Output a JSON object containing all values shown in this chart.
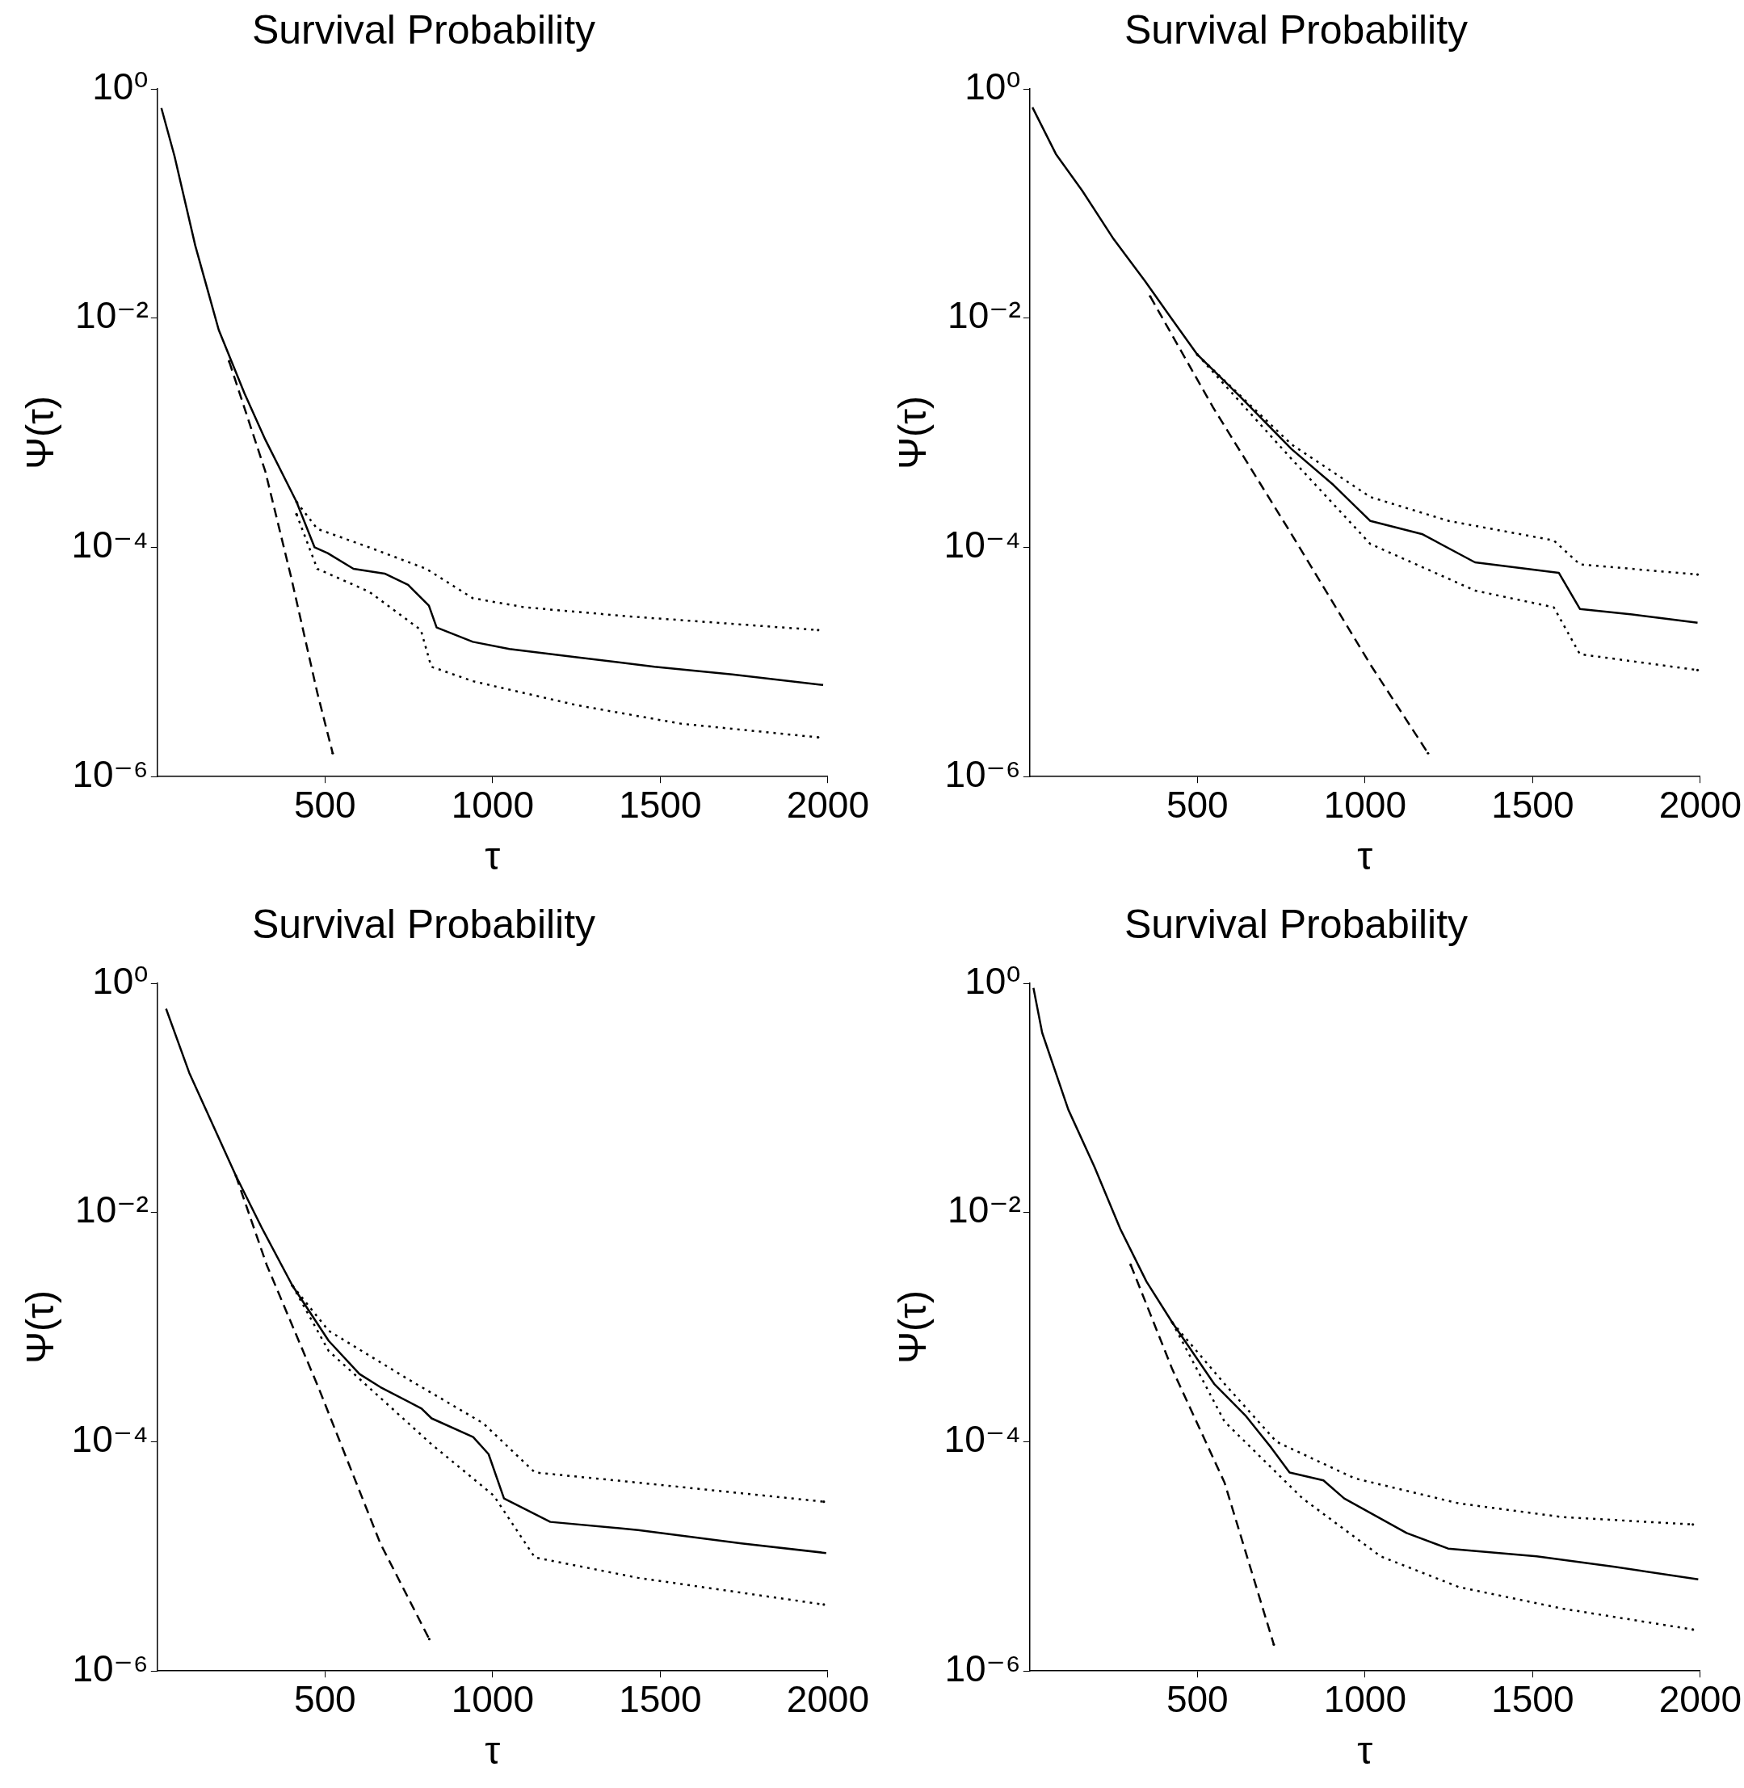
{
  "chart_data": [
    {
      "type": "line",
      "title": "Survival Probability",
      "xlabel": "τ",
      "ylabel": "Ψ(τ)",
      "log": "y",
      "grid": false,
      "legend": false,
      "xlim": [
        0,
        2000
      ],
      "xticks": [
        500,
        1000,
        1500,
        2000
      ],
      "ylim": [
        1e-06,
        1
      ],
      "yticks": [
        {
          "value": 1,
          "label": "10⁰"
        },
        {
          "value": 0.01,
          "label": "10⁻²"
        },
        {
          "value": 0.0001,
          "label": "10⁻⁴"
        },
        {
          "value": 1e-06,
          "label": "10⁻⁶"
        }
      ],
      "series": [
        {
          "color": "#000000",
          "line_style": "solid",
          "x": [
            12,
            51,
            113,
            183,
            260,
            322,
            415,
            469,
            508,
            585,
            678,
            748,
            810,
            833,
            941,
            1050,
            1251,
            1483,
            1715,
            1986
          ],
          "values": [
            0.68,
            0.26,
            0.043,
            0.0079,
            0.0022,
            0.00087,
            0.00025,
            0.0001,
            8.9e-05,
            6.5e-05,
            5.9e-05,
            4.7e-05,
            3.1e-05,
            2e-05,
            1.5e-05,
            1.3e-05,
            1.1e-05,
            9.1e-06,
            7.8e-06,
            6.3e-06
          ]
        },
        {
          "color": "#000000",
          "line_style": "dotted",
          "x": [
            415,
            477,
            632,
            802,
            941,
            1096,
            1406,
            1971
          ],
          "values": [
            0.00025,
            0.000145,
            0.0001,
            6.5e-05,
            3.6e-05,
            3e-05,
            2.5e-05,
            1.9e-05
          ]
        },
        {
          "color": "#000000",
          "line_style": "dotted",
          "x": [
            415,
            477,
            632,
            786,
            817,
            941,
            1251,
            1560,
            1971
          ],
          "values": [
            0.000195,
            6.5e-05,
            4.1e-05,
            1.9e-05,
            9.1e-06,
            6.8e-06,
            4.2e-06,
            2.9e-06,
            2.2e-06
          ]
        },
        {
          "color": "#000000",
          "line_style": "dashed",
          "x": [
            214,
            322,
            399,
            477,
            523
          ],
          "values": [
            0.0042,
            0.00046,
            5.5e-05,
            5.4e-06,
            1.6e-06
          ]
        }
      ]
    },
    {
      "type": "line",
      "title": "Survival Probability",
      "xlabel": "τ",
      "ylabel": "Ψ(τ)",
      "log": "y",
      "grid": false,
      "legend": false,
      "xlim": [
        0,
        2000
      ],
      "xticks": [
        500,
        1000,
        1500,
        2000
      ],
      "ylim": [
        1e-06,
        1
      ],
      "yticks": [
        {
          "value": 1,
          "label": "10⁰"
        },
        {
          "value": 0.01,
          "label": "10⁻²"
        },
        {
          "value": 0.0001,
          "label": "10⁻⁴"
        },
        {
          "value": 1e-06,
          "label": "10⁻⁶"
        }
      ],
      "series": [
        {
          "color": "#000000",
          "line_style": "solid",
          "x": [
            8,
            78,
            156,
            250,
            344,
            422,
            500,
            625,
            781,
            906,
            1016,
            1172,
            1328,
            1578,
            1641,
            1797,
            1992
          ],
          "values": [
            0.69,
            0.27,
            0.13,
            0.049,
            0.021,
            0.01,
            0.0048,
            0.0021,
            0.00072,
            0.00035,
            0.00017,
            0.00013,
            7.4e-05,
            6e-05,
            2.9e-05,
            2.6e-05,
            2.2e-05
          ]
        },
        {
          "color": "#000000",
          "line_style": "dotted",
          "x": [
            500,
            781,
            1016,
            1250,
            1563,
            1641,
            1992
          ],
          "values": [
            0.0048,
            0.00079,
            0.000275,
            0.00017,
            0.000115,
            7.1e-05,
            5.8e-05
          ]
        },
        {
          "color": "#000000",
          "line_style": "dotted",
          "x": [
            500,
            781,
            1016,
            1328,
            1563,
            1641,
            1992
          ],
          "values": [
            0.0048,
            0.00059,
            0.000107,
            4.2e-05,
            3e-05,
            1.17e-05,
            8.5e-06
          ]
        },
        {
          "color": "#000000",
          "line_style": "dashed",
          "x": [
            359,
            547,
            781,
            1016,
            1188
          ],
          "values": [
            0.0155,
            0.00166,
            0.00013,
            9.5e-06,
            1.6e-06
          ]
        }
      ]
    },
    {
      "type": "line",
      "title": "Survival Probability",
      "xlabel": "τ",
      "ylabel": "Ψ(τ)",
      "log": "y",
      "grid": false,
      "legend": false,
      "xlim": [
        0,
        2000
      ],
      "xticks": [
        500,
        1000,
        1500,
        2000
      ],
      "ylim": [
        1e-06,
        1
      ],
      "yticks": [
        {
          "value": 1,
          "label": "10⁰"
        },
        {
          "value": 0.01,
          "label": "10⁻²"
        },
        {
          "value": 0.0001,
          "label": "10⁻⁴"
        },
        {
          "value": 1e-06,
          "label": "10⁻⁶"
        }
      ],
      "series": [
        {
          "color": "#000000",
          "line_style": "solid",
          "x": [
            26,
            95,
            157,
            234,
            311,
            403,
            511,
            603,
            665,
            788,
            818,
            942,
            988,
            1034,
            1172,
            1434,
            1742,
            1995
          ],
          "values": [
            0.6,
            0.166,
            0.066,
            0.021,
            0.0074,
            0.0023,
            0.00076,
            0.00039,
            0.0003,
            0.000195,
            0.00016,
            0.00011,
            7.8e-05,
            3.2e-05,
            2e-05,
            1.7e-05,
            1.3e-05,
            1.07e-05
          ]
        },
        {
          "color": "#000000",
          "line_style": "dotted",
          "x": [
            403,
            511,
            742,
            972,
            1126,
            1434,
            1988
          ],
          "values": [
            0.0023,
            0.00093,
            0.00036,
            0.000145,
            5.4e-05,
            4.4e-05,
            3e-05
          ]
        },
        {
          "color": "#000000",
          "line_style": "dotted",
          "x": [
            403,
            511,
            818,
            1003,
            1126,
            1434,
            1988
          ],
          "values": [
            0.0023,
            0.00062,
            9.5e-05,
            3.4e-05,
            9.8e-06,
            6.5e-06,
            3.8e-06
          ]
        },
        {
          "color": "#000000",
          "line_style": "dashed",
          "x": [
            234,
            326,
            480,
            665,
            811
          ],
          "values": [
            0.021,
            0.0035,
            0.0003,
            1.3e-05,
            1.9e-06
          ]
        }
      ]
    },
    {
      "type": "line",
      "title": "Survival Probability",
      "xlabel": "τ",
      "ylabel": "Ψ(τ)",
      "log": "y",
      "grid": false,
      "legend": false,
      "xlim": [
        0,
        2000
      ],
      "xticks": [
        500,
        1000,
        1500,
        2000
      ],
      "ylim": [
        1e-06,
        1
      ],
      "yticks": [
        {
          "value": 1,
          "label": "10⁰"
        },
        {
          "value": 0.01,
          "label": "10⁻²"
        },
        {
          "value": 0.0001,
          "label": "10⁻⁴"
        },
        {
          "value": 1e-06,
          "label": "10⁻⁶"
        }
      ],
      "series": [
        {
          "color": "#000000",
          "line_style": "solid",
          "x": [
            11,
            37,
            115,
            193,
            270,
            348,
            425,
            550,
            643,
            720,
            775,
            876,
            938,
            1124,
            1248,
            1512,
            1745,
            1994
          ],
          "values": [
            0.91,
            0.37,
            0.079,
            0.025,
            0.0072,
            0.0025,
            0.0011,
            0.00032,
            0.00017,
            8.9e-05,
            5.4e-05,
            4.6e-05,
            3.2e-05,
            1.6e-05,
            1.17e-05,
            1e-05,
            8.1e-06,
            6.3e-06
          ]
        },
        {
          "color": "#000000",
          "line_style": "dotted",
          "x": [
            425,
            581,
            736,
            969,
            1280,
            1590,
            1978
          ],
          "values": [
            0.0011,
            0.00032,
            0.0001,
            4.8e-05,
            2.9e-05,
            2.2e-05,
            1.9e-05
          ]
        },
        {
          "color": "#000000",
          "line_style": "dotted",
          "x": [
            425,
            581,
            814,
            1047,
            1280,
            1590,
            1978
          ],
          "values": [
            0.0011,
            0.00015,
            3.2e-05,
            1e-05,
            5.4e-06,
            3.5e-06,
            2.3e-06
          ]
        },
        {
          "color": "#000000",
          "line_style": "dashed",
          "x": [
            301,
            425,
            581,
            728
          ],
          "values": [
            0.0035,
            0.00043,
            4.4e-05,
            1.7e-06
          ]
        }
      ]
    }
  ]
}
